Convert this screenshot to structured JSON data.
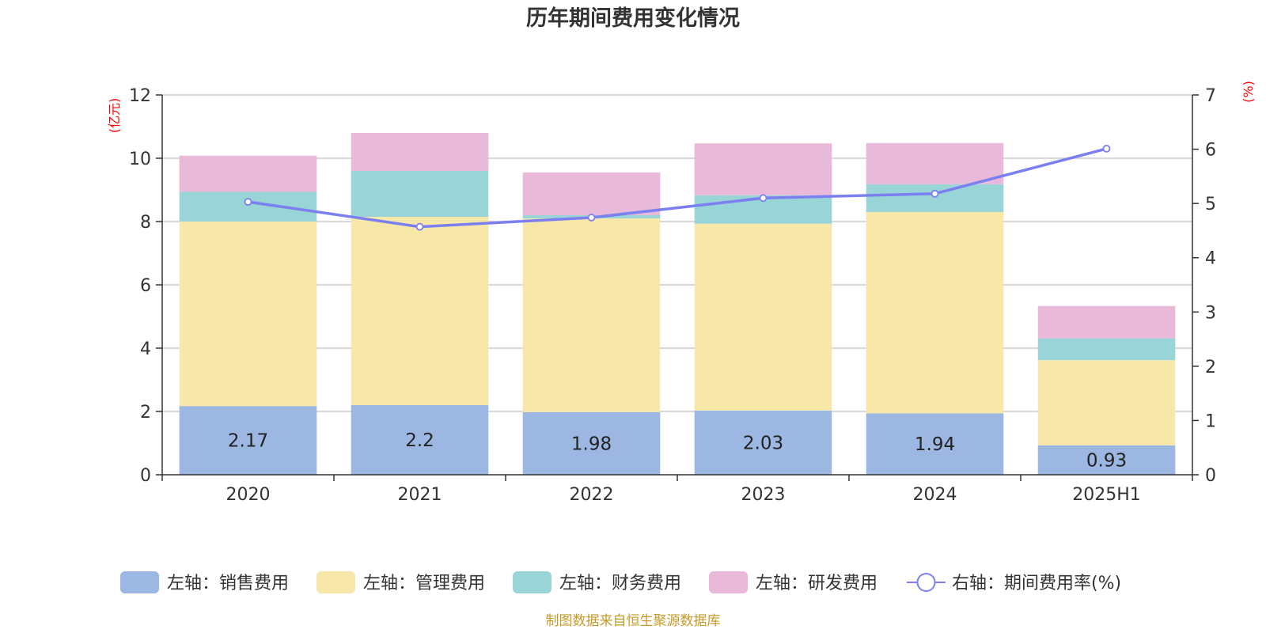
{
  "chart_data": {
    "type": "bar",
    "title": "历年期间费用变化情况",
    "categories": [
      "2020",
      "2021",
      "2022",
      "2023",
      "2024",
      "2025H1"
    ],
    "stacked": true,
    "left_axis": {
      "unit": "(亿元)",
      "min": 0,
      "max": 12,
      "ticks": [
        "0",
        "2",
        "4",
        "6",
        "8",
        "10",
        "12"
      ]
    },
    "right_axis": {
      "unit": "(%)",
      "min": 0,
      "max": 7,
      "ticks": [
        "0",
        "1",
        "2",
        "3",
        "4",
        "5",
        "6",
        "7"
      ]
    },
    "grid": true,
    "legend_position": "bottom",
    "series": [
      {
        "name": "左轴：销售费用",
        "axis": "left",
        "kind": "bar",
        "color": "#9bb7e2",
        "values": [
          2.17,
          2.2,
          1.98,
          2.03,
          1.94,
          0.93
        ],
        "labels": [
          "2.17",
          "2.2",
          "1.98",
          "2.03",
          "1.94",
          "0.93"
        ]
      },
      {
        "name": "左轴：管理费用",
        "axis": "left",
        "kind": "bar",
        "color": "#f7e8a9",
        "values": [
          5.83,
          5.95,
          6.12,
          5.9,
          6.36,
          2.69
        ]
      },
      {
        "name": "左轴：财务费用",
        "axis": "left",
        "kind": "bar",
        "color": "#99d5d6",
        "values": [
          0.94,
          1.45,
          0.1,
          0.9,
          0.88,
          0.69
        ]
      },
      {
        "name": "左轴：研发费用",
        "axis": "left",
        "kind": "bar",
        "color": "#e8b9d9",
        "values": [
          1.14,
          1.2,
          1.35,
          1.64,
          1.3,
          1.02
        ]
      },
      {
        "name": "右轴：期间费用率(%)",
        "axis": "right",
        "kind": "line",
        "color": "#7b7ff0",
        "values": [
          5.03,
          4.57,
          4.74,
          5.1,
          5.18,
          6.01
        ]
      }
    ],
    "source": "制图数据来自恒生聚源数据库"
  }
}
